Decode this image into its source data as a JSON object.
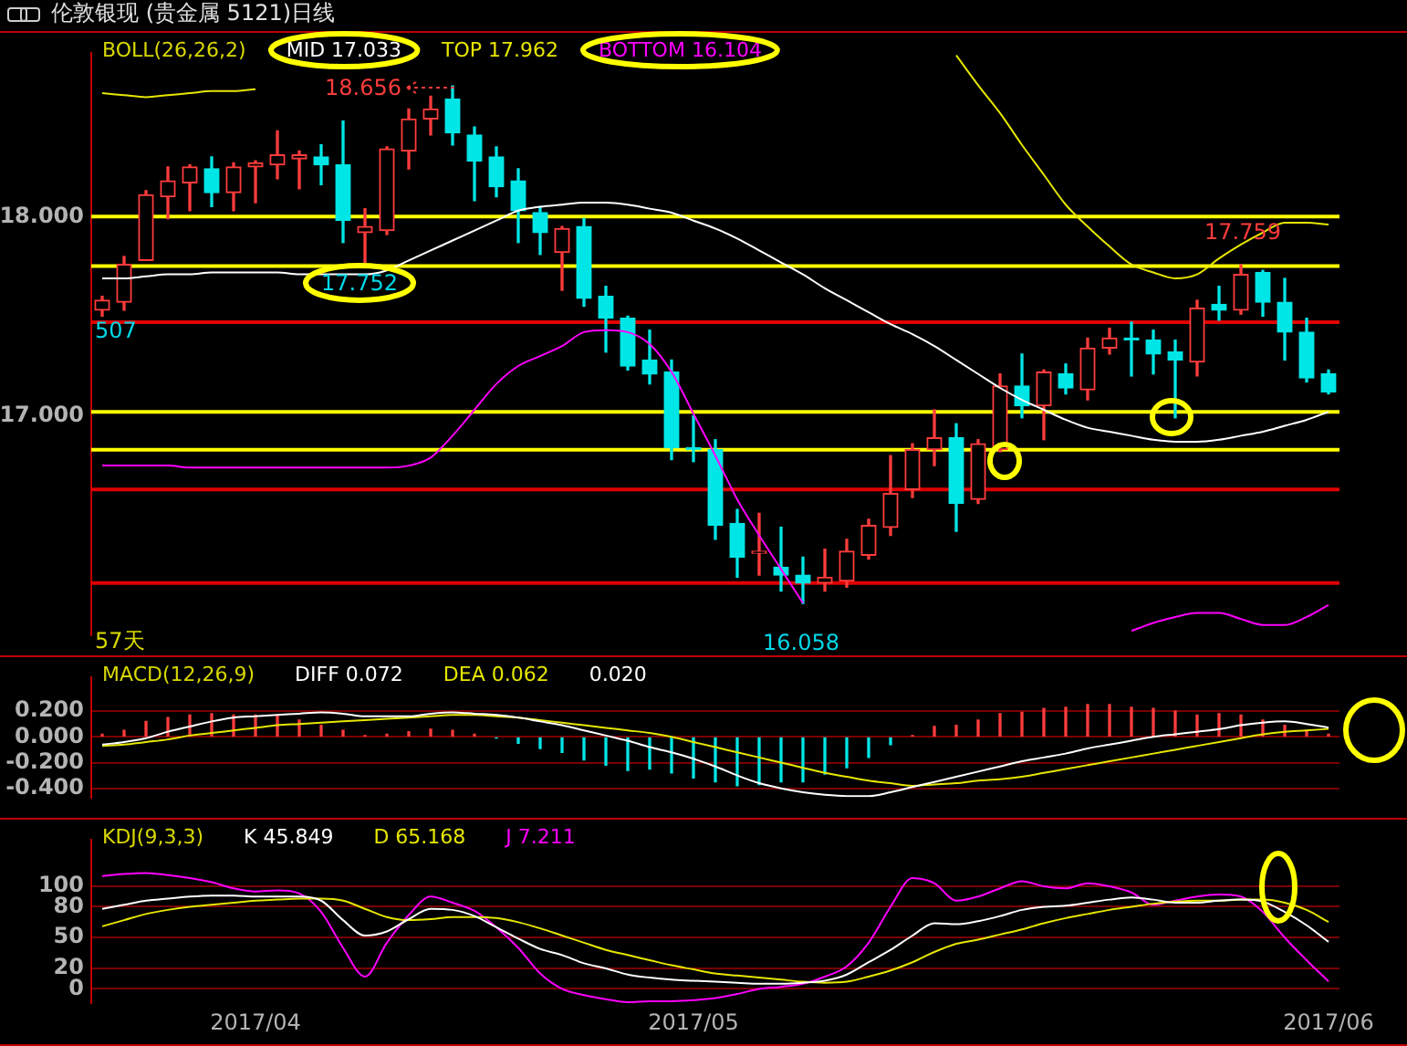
{
  "chart_data": [
    {
      "type": "candlestick",
      "title": "伦敦银现 (贵金属 5121)日线",
      "legend_title": "BOLL(26,26,2)",
      "legend": "top left",
      "tick_labels": "y",
      "categories": [
        null,
        null,
        null,
        null,
        null,
        null,
        null,
        "2017/04",
        null,
        null,
        null,
        null,
        null,
        null,
        null,
        null,
        null,
        null,
        null,
        null,
        null,
        null,
        null,
        null,
        null,
        null,
        null,
        "2017/05",
        null,
        null,
        null,
        null,
        null,
        null,
        null,
        null,
        null,
        null,
        null,
        null,
        null,
        null,
        null,
        null,
        null,
        null,
        null,
        null,
        null,
        null,
        null,
        null,
        null,
        null,
        null,
        null,
        "2017/06"
      ],
      "ohlc": [
        [
          17.53,
          17.6,
          17.5,
          17.58
        ],
        [
          17.57,
          17.8,
          17.53,
          17.76
        ],
        [
          17.78,
          18.13,
          17.78,
          18.11
        ],
        [
          18.1,
          18.25,
          17.99,
          18.18
        ],
        [
          18.17,
          18.26,
          18.03,
          18.25
        ],
        [
          18.24,
          18.3,
          18.05,
          18.12
        ],
        [
          18.12,
          18.27,
          18.03,
          18.25
        ],
        [
          18.25,
          18.28,
          18.07,
          18.27
        ],
        [
          18.26,
          18.43,
          18.19,
          18.31
        ],
        [
          18.29,
          18.33,
          18.14,
          18.31
        ],
        [
          18.3,
          18.36,
          18.16,
          18.26
        ],
        [
          18.26,
          18.48,
          17.87,
          17.98
        ],
        [
          17.92,
          18.04,
          17.752,
          17.95
        ],
        [
          17.93,
          18.35,
          17.91,
          18.34
        ],
        [
          18.33,
          18.54,
          18.24,
          18.49
        ],
        [
          18.49,
          18.605,
          18.41,
          18.54
        ],
        [
          18.59,
          18.656,
          18.36,
          18.42
        ],
        [
          18.41,
          18.45,
          18.08,
          18.28
        ],
        [
          18.3,
          18.35,
          18.1,
          18.15
        ],
        [
          18.18,
          18.24,
          17.87,
          18.03
        ],
        [
          18.02,
          18.05,
          17.81,
          17.92
        ],
        [
          17.82,
          17.95,
          17.63,
          17.94
        ],
        [
          17.95,
          17.99,
          17.55,
          17.59
        ],
        [
          17.6,
          17.65,
          17.32,
          17.49
        ],
        [
          17.49,
          17.5,
          17.23,
          17.25
        ],
        [
          17.28,
          17.43,
          17.16,
          17.21
        ],
        [
          17.22,
          17.28,
          16.78,
          16.84
        ],
        [
          16.84,
          17.0,
          16.77,
          16.83
        ],
        [
          16.83,
          16.88,
          16.38,
          16.45
        ],
        [
          16.46,
          16.53,
          16.19,
          16.29
        ],
        [
          16.31,
          16.51,
          16.2,
          16.32
        ],
        [
          16.24,
          16.44,
          16.12,
          16.2
        ],
        [
          16.2,
          16.29,
          16.058,
          16.16
        ],
        [
          16.16,
          16.33,
          16.12,
          16.19
        ],
        [
          16.17,
          16.38,
          16.14,
          16.32
        ],
        [
          16.3,
          16.48,
          16.28,
          16.45
        ],
        [
          16.44,
          16.8,
          16.4,
          16.61
        ],
        [
          16.63,
          16.86,
          16.59,
          16.83
        ],
        [
          16.83,
          17.03,
          16.75,
          16.89
        ],
        [
          16.89,
          16.96,
          16.42,
          16.56
        ],
        [
          16.58,
          16.88,
          16.56,
          16.86
        ],
        [
          16.83,
          17.21,
          16.82,
          17.15
        ],
        [
          17.15,
          17.31,
          16.99,
          17.05
        ],
        [
          17.05,
          17.23,
          16.88,
          17.22
        ],
        [
          17.21,
          17.26,
          17.11,
          17.14
        ],
        [
          17.13,
          17.39,
          17.08,
          17.34
        ],
        [
          17.34,
          17.44,
          17.31,
          17.39
        ],
        [
          17.39,
          17.47,
          17.2,
          17.38
        ],
        [
          17.38,
          17.43,
          17.21,
          17.31
        ],
        [
          17.32,
          17.38,
          16.99,
          17.28
        ],
        [
          17.27,
          17.58,
          17.2,
          17.54
        ],
        [
          17.56,
          17.65,
          17.48,
          17.53
        ],
        [
          17.53,
          17.759,
          17.51,
          17.71
        ],
        [
          17.72,
          17.73,
          17.5,
          17.57
        ],
        [
          17.57,
          17.69,
          17.28,
          17.42
        ],
        [
          17.42,
          17.49,
          17.17,
          17.19
        ],
        [
          17.21,
          17.23,
          17.11,
          17.12
        ]
      ],
      "colors": [
        "#ff3c3c",
        "#ff3c3c",
        "#ff3c3c",
        "#ff3c3c",
        "#ff3c3c",
        "#00e6e6",
        "#ff3c3c",
        "#ff3c3c",
        "#ff3c3c",
        "#ff3c3c",
        "#00e6e6",
        "#00e6e6",
        "#ff3c3c",
        "#ff3c3c",
        "#ff3c3c",
        "#ff3c3c",
        "#00e6e6",
        "#00e6e6",
        "#00e6e6",
        "#00e6e6",
        "#00e6e6",
        "#ff3c3c",
        "#00e6e6",
        "#00e6e6",
        "#00e6e6",
        "#00e6e6",
        "#00e6e6",
        "#00e6e6",
        "#00e6e6",
        "#00e6e6",
        "#ff3c3c",
        "#00e6e6",
        "#00e6e6",
        "#ff3c3c",
        "#ff3c3c",
        "#ff3c3c",
        "#ff3c3c",
        "#ff3c3c",
        "#ff3c3c",
        "#00e6e6",
        "#ff3c3c",
        "#ff3c3c",
        "#00e6e6",
        "#ff3c3c",
        "#00e6e6",
        "#ff3c3c",
        "#ff3c3c",
        "#00e6e6",
        "#00e6e6",
        "#00e6e6",
        "#ff3c3c",
        "#00e6e6",
        "#ff3c3c",
        "#00e6e6",
        "#00e6e6",
        "#00e6e6",
        "#00e6e6"
      ],
      "series": [
        {
          "type": "line",
          "name": "MID 17.033",
          "color": "#ffffff",
          "values": [
            17.69,
            17.69,
            17.7,
            17.71,
            17.71,
            17.72,
            17.72,
            17.72,
            17.72,
            17.71,
            17.71,
            17.71,
            17.71,
            17.73,
            17.78,
            17.83,
            17.88,
            17.93,
            17.98,
            18.03,
            18.05,
            18.06,
            18.07,
            18.07,
            18.06,
            18.04,
            18.02,
            17.98,
            17.94,
            17.89,
            17.83,
            17.77,
            17.71,
            17.64,
            17.58,
            17.52,
            17.46,
            17.41,
            17.35,
            17.28,
            17.21,
            17.14,
            17.08,
            17.03,
            16.98,
            16.94,
            16.92,
            16.9,
            16.88,
            16.87,
            16.87,
            16.88,
            16.9,
            16.92,
            16.95,
            16.98,
            17.02
          ]
        },
        {
          "type": "line",
          "name": "TOP 17.962",
          "color": "#e6e600",
          "values": [
            18.62,
            18.61,
            18.6,
            18.61,
            18.62,
            18.63,
            18.63,
            18.64,
            null,
            null,
            null,
            null,
            null,
            null,
            null,
            null,
            null,
            null,
            null,
            null,
            null,
            null,
            null,
            null,
            null,
            null,
            null,
            null,
            null,
            null,
            null,
            null,
            null,
            null,
            null,
            null,
            null,
            null,
            null,
            18.81,
            18.66,
            18.52,
            18.36,
            18.21,
            18.06,
            17.95,
            17.85,
            17.76,
            17.72,
            17.69,
            17.71,
            17.79,
            17.86,
            17.92,
            17.97,
            17.97,
            17.96
          ]
        },
        {
          "type": "line",
          "name": "BOTTOM 16.104",
          "color": "#ff00ff",
          "values": [
            16.75,
            16.75,
            16.75,
            16.75,
            16.74,
            16.74,
            16.74,
            16.74,
            16.74,
            16.74,
            16.74,
            16.74,
            16.74,
            16.74,
            16.75,
            16.79,
            16.9,
            17.03,
            17.16,
            17.25,
            17.3,
            17.35,
            17.42,
            17.43,
            17.42,
            17.36,
            17.22,
            17.01,
            16.8,
            16.58,
            16.4,
            16.23,
            16.06,
            null,
            null,
            null,
            null,
            null,
            null,
            null,
            null,
            null,
            null,
            null,
            null,
            null,
            null,
            15.92,
            15.96,
            15.99,
            16.01,
            16.01,
            15.98,
            15.95,
            15.95,
            15.99,
            16.05
          ]
        }
      ],
      "ylim": [
        15.9,
        18.82
      ],
      "yticks": [
        {
          "value": 18,
          "label": "18.000"
        },
        {
          "value": 17,
          "label": "17.000"
        }
      ],
      "ref_lines": [
        {
          "axis": "y",
          "value": 18,
          "color": "#ffff00"
        },
        {
          "axis": "y",
          "value": 17.752,
          "color": "#ffff00"
        },
        {
          "axis": "y",
          "value": 17.02,
          "color": "#ffff00"
        },
        {
          "axis": "y",
          "value": 16.83,
          "color": "#ffff00"
        },
        {
          "axis": "y",
          "value": 17.47,
          "color": "#e00000"
        },
        {
          "axis": "y",
          "value": 16.63,
          "color": "#e00000"
        },
        {
          "axis": "y",
          "value": 16.16,
          "color": "#e00000"
        }
      ],
      "annotations": [
        "18.656",
        "17.752",
        "17.759",
        "16.058",
        "507",
        "57天"
      ]
    },
    {
      "type": "bar",
      "legend_title": "MACD(12,26,9)",
      "legend": "top left",
      "tick_labels": "y",
      "grid": "y",
      "categories": [
        null,
        null,
        null,
        null,
        null,
        null,
        null,
        "2017/04",
        null,
        null,
        null,
        null,
        null,
        null,
        null,
        null,
        null,
        null,
        null,
        null,
        null,
        null,
        null,
        null,
        null,
        null,
        null,
        "2017/05",
        null,
        null,
        null,
        null,
        null,
        null,
        null,
        null,
        null,
        null,
        null,
        null,
        null,
        null,
        null,
        null,
        null,
        null,
        null,
        null,
        null,
        null,
        null,
        null,
        null,
        null,
        null,
        null,
        "2017/06"
      ],
      "series": [
        {
          "type": "bar",
          "colors": [
            "#ff3c3c",
            "#ff3c3c",
            "#ff3c3c",
            "#ff3c3c",
            "#ff3c3c",
            "#ff3c3c",
            "#ff3c3c",
            "#ff3c3c",
            "#ff3c3c",
            "#ff3c3c",
            "#ff3c3c",
            "#ff3c3c",
            "#ff3c3c",
            "#ff3c3c",
            "#ff3c3c",
            "#ff3c3c",
            "#ff3c3c",
            "#ff3c3c",
            "#00e6e6",
            "#00e6e6",
            "#00e6e6",
            "#00e6e6",
            "#00e6e6",
            "#00e6e6",
            "#00e6e6",
            "#00e6e6",
            "#00e6e6",
            "#00e6e6",
            "#00e6e6",
            "#00e6e6",
            "#00e6e6",
            "#00e6e6",
            "#00e6e6",
            "#00e6e6",
            "#00e6e6",
            "#00e6e6",
            "#00e6e6",
            "#ff3c3c",
            "#ff3c3c",
            "#ff3c3c",
            "#ff3c3c",
            "#ff3c3c",
            "#ff3c3c",
            "#ff3c3c",
            "#ff3c3c",
            "#ff3c3c",
            "#ff3c3c",
            "#ff3c3c",
            "#ff3c3c",
            "#ff3c3c",
            "#ff3c3c",
            "#ff3c3c",
            "#ff3c3c",
            "#ff3c3c",
            "#ff3c3c",
            "#ff3c3c",
            "#ff3c3c"
          ],
          "values": [
            0.02,
            0.05,
            0.12,
            0.15,
            0.17,
            0.18,
            0.17,
            0.17,
            0.16,
            0.13,
            0.09,
            0.05,
            0.01,
            0.02,
            0.04,
            0.06,
            0.05,
            0.02,
            -0.01,
            -0.05,
            -0.09,
            -0.12,
            -0.18,
            -0.22,
            -0.26,
            -0.25,
            -0.28,
            -0.32,
            -0.35,
            -0.38,
            -0.37,
            -0.35,
            -0.35,
            -0.29,
            -0.24,
            -0.16,
            -0.06,
            0.01,
            0.08,
            0.09,
            0.13,
            0.18,
            0.19,
            0.22,
            0.23,
            0.25,
            0.25,
            0.23,
            0.22,
            0.2,
            0.17,
            0.18,
            0.17,
            0.13,
            0.09,
            0.05,
            0.02
          ]
        },
        {
          "type": "line",
          "name": "DIFF 0.072",
          "color": "#ffffff",
          "values": [
            -0.06,
            -0.04,
            -0.01,
            0.04,
            0.08,
            0.12,
            0.15,
            0.16,
            0.17,
            0.18,
            0.19,
            0.18,
            0.16,
            0.16,
            0.16,
            0.18,
            0.19,
            0.18,
            0.17,
            0.15,
            0.12,
            0.09,
            0.05,
            0.01,
            -0.03,
            -0.08,
            -0.12,
            -0.17,
            -0.23,
            -0.3,
            -0.36,
            -0.4,
            -0.43,
            -0.45,
            -0.46,
            -0.46,
            -0.43,
            -0.39,
            -0.35,
            -0.31,
            -0.27,
            -0.23,
            -0.19,
            -0.16,
            -0.13,
            -0.09,
            -0.06,
            -0.03,
            0.0,
            0.02,
            0.04,
            0.06,
            0.09,
            0.11,
            0.12,
            0.1,
            0.072
          ]
        },
        {
          "type": "line",
          "name": "DEA 0.062",
          "color": "#e6e600",
          "values": [
            -0.07,
            -0.06,
            -0.04,
            -0.02,
            0.01,
            0.03,
            0.05,
            0.07,
            0.09,
            0.1,
            0.11,
            0.12,
            0.13,
            0.14,
            0.15,
            0.16,
            0.17,
            0.17,
            0.16,
            0.15,
            0.13,
            0.11,
            0.09,
            0.07,
            0.05,
            0.03,
            0.0,
            -0.04,
            -0.08,
            -0.12,
            -0.16,
            -0.2,
            -0.24,
            -0.28,
            -0.31,
            -0.34,
            -0.36,
            -0.38,
            -0.37,
            -0.36,
            -0.34,
            -0.33,
            -0.31,
            -0.28,
            -0.25,
            -0.22,
            -0.19,
            -0.16,
            -0.13,
            -0.1,
            -0.07,
            -0.04,
            -0.01,
            0.02,
            0.04,
            0.05,
            0.062
          ]
        }
      ],
      "ylim": [
        -0.47,
        0.46
      ],
      "yticks": [
        {
          "value": 0.2,
          "label": "0.200"
        },
        {
          "value": 0,
          "label": "0.000"
        },
        {
          "value": -0.2,
          "label": "-0.200"
        },
        {
          "value": -0.4,
          "label": "-0.400"
        }
      ],
      "annotations": [
        "0.020"
      ]
    },
    {
      "type": "line",
      "legend_title": "KDJ(9,3,3)",
      "legend": "top left",
      "grid": "y",
      "categories": [
        null,
        null,
        null,
        null,
        null,
        null,
        null,
        "2017/04",
        null,
        null,
        null,
        null,
        null,
        null,
        null,
        null,
        null,
        null,
        null,
        null,
        null,
        null,
        null,
        null,
        null,
        null,
        null,
        "2017/05",
        null,
        null,
        null,
        null,
        null,
        null,
        null,
        null,
        null,
        null,
        null,
        null,
        null,
        null,
        null,
        null,
        null,
        null,
        null,
        null,
        null,
        null,
        null,
        null,
        null,
        null,
        null,
        null,
        "2017/06"
      ],
      "series": [
        {
          "name": "K 45.849",
          "color": "#ffffff",
          "values": [
            78,
            82,
            86,
            88,
            90,
            91,
            91,
            90,
            90,
            90,
            86,
            67,
            52,
            56,
            68,
            78,
            77,
            71,
            60,
            49,
            39,
            33,
            25,
            20,
            14,
            11,
            9,
            8,
            7,
            6,
            5,
            5,
            6,
            8,
            14,
            26,
            38,
            52,
            64,
            63,
            66,
            71,
            77,
            80,
            81,
            84,
            87,
            89,
            87,
            84,
            84,
            86,
            87,
            85,
            75,
            62,
            45.849
          ]
        },
        {
          "name": "D 65.168",
          "color": "#e6e600",
          "values": [
            61,
            67,
            73,
            77,
            80,
            82,
            84,
            86,
            87,
            88,
            88,
            86,
            78,
            70,
            67,
            68,
            70,
            70,
            69,
            65,
            59,
            52,
            45,
            38,
            33,
            28,
            23,
            19,
            15,
            13,
            11,
            9,
            7,
            6,
            7,
            12,
            18,
            26,
            36,
            44,
            48,
            53,
            58,
            64,
            69,
            73,
            77,
            80,
            83,
            85,
            86,
            86,
            87,
            87,
            84,
            77,
            65.168
          ]
        },
        {
          "name": "J 7.211",
          "color": "#ff00ff",
          "values": [
            110,
            112,
            113,
            111,
            108,
            104,
            98,
            95,
            96,
            93,
            75,
            40,
            12,
            45,
            72,
            90,
            84,
            76,
            60,
            40,
            15,
            0,
            -6,
            -10,
            -13,
            -12,
            -12,
            -11,
            -9,
            -5,
            0,
            2,
            5,
            12,
            22,
            45,
            80,
            108,
            103,
            86,
            90,
            98,
            105,
            100,
            98,
            103,
            100,
            94,
            82,
            86,
            90,
            92,
            90,
            75,
            50,
            28,
            7.211
          ]
        }
      ],
      "ylim": [
        -14,
        145
      ],
      "yticks": [
        0,
        20,
        50,
        80,
        100
      ]
    }
  ]
}
